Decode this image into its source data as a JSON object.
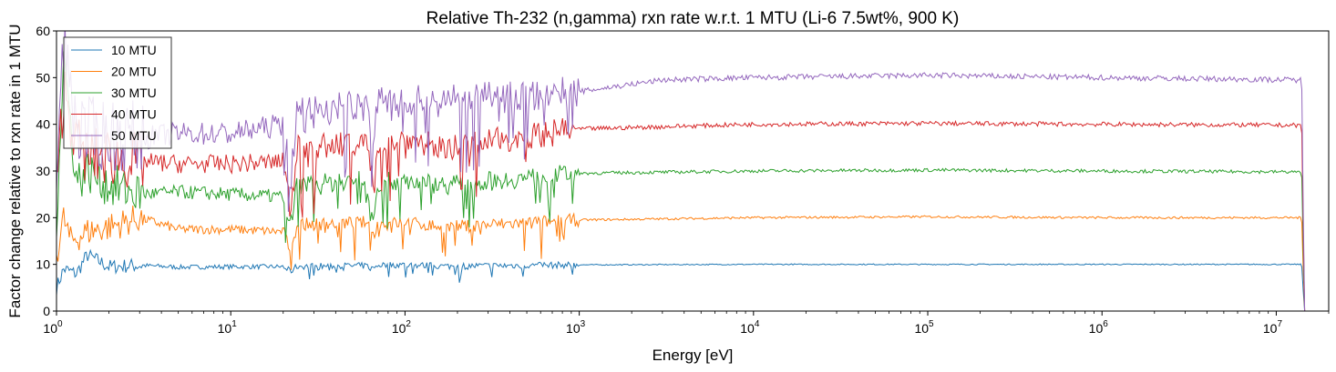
{
  "chart_data": {
    "type": "line",
    "title": "Relative Th-232 (n,gamma) rxn rate w.r.t. 1 MTU (Li-6 7.5wt%, 900 K)",
    "xlabel": "Energy [eV]",
    "ylabel": "Factor change relative to rxn rate in 1 MTU",
    "x_scale": "log",
    "xlim": [
      1,
      20000000
    ],
    "ylim": [
      0,
      60
    ],
    "yticks": [
      0,
      10,
      20,
      30,
      40,
      50,
      60
    ],
    "xticks": [
      {
        "value": 1,
        "base": "10",
        "exp": "0"
      },
      {
        "value": 10,
        "base": "10",
        "exp": "1"
      },
      {
        "value": 100,
        "base": "10",
        "exp": "2"
      },
      {
        "value": 1000,
        "base": "10",
        "exp": "3"
      },
      {
        "value": 10000,
        "base": "10",
        "exp": "4"
      },
      {
        "value": 100000,
        "base": "10",
        "exp": "5"
      },
      {
        "value": 1000000,
        "base": "10",
        "exp": "6"
      },
      {
        "value": 10000000,
        "base": "10",
        "exp": "7"
      }
    ],
    "legend_position": "top-left",
    "grid": false,
    "series": [
      {
        "name": "10 MTU",
        "color": "#1f77b4",
        "level": 10,
        "points": [
          [
            1,
            5
          ],
          [
            1.1,
            9
          ],
          [
            1.3,
            8
          ],
          [
            1.5,
            12
          ],
          [
            2,
            9.5
          ],
          [
            3,
            9.8
          ],
          [
            5,
            9.4
          ],
          [
            10,
            9.5
          ],
          [
            20,
            9.5
          ],
          [
            22,
            8.5
          ],
          [
            24,
            9.6
          ],
          [
            60,
            9.7
          ],
          [
            65,
            9.0
          ],
          [
            70,
            9.9
          ],
          [
            100,
            9.9
          ],
          [
            170,
            9.6
          ],
          [
            1000,
            9.9
          ],
          [
            10000,
            10.0
          ],
          [
            100000,
            10.0
          ],
          [
            1000000,
            10.0
          ],
          [
            14000000,
            10.0
          ],
          [
            14500000,
            0
          ],
          [
            20000000,
            0
          ]
        ]
      },
      {
        "name": "20 MTU",
        "color": "#ff7f0e",
        "level": 20,
        "points": [
          [
            1,
            12
          ],
          [
            1.1,
            20
          ],
          [
            1.2,
            15
          ],
          [
            1.5,
            17
          ],
          [
            2,
            18
          ],
          [
            3,
            20
          ],
          [
            5,
            17.5
          ],
          [
            10,
            17.5
          ],
          [
            20,
            17
          ],
          [
            22,
            13
          ],
          [
            24,
            18.5
          ],
          [
            60,
            19
          ],
          [
            65,
            16
          ],
          [
            70,
            18.5
          ],
          [
            100,
            19
          ],
          [
            170,
            18
          ],
          [
            1000,
            19.5
          ],
          [
            10000,
            20
          ],
          [
            100000,
            20.2
          ],
          [
            1000000,
            20
          ],
          [
            14000000,
            20
          ],
          [
            14500000,
            0
          ],
          [
            20000000,
            0
          ]
        ]
      },
      {
        "name": "30 MTU",
        "color": "#2ca02c",
        "level": 30,
        "points": [
          [
            1,
            20
          ],
          [
            1.1,
            55
          ],
          [
            1.3,
            28
          ],
          [
            1.5,
            30
          ],
          [
            2,
            27
          ],
          [
            3,
            25
          ],
          [
            5,
            25.5
          ],
          [
            10,
            25
          ],
          [
            20,
            24.5
          ],
          [
            22,
            18
          ],
          [
            24,
            27
          ],
          [
            60,
            28
          ],
          [
            65,
            20
          ],
          [
            70,
            27.5
          ],
          [
            100,
            28
          ],
          [
            170,
            27
          ],
          [
            1000,
            29.5
          ],
          [
            10000,
            30
          ],
          [
            100000,
            30.2
          ],
          [
            1000000,
            30
          ],
          [
            14000000,
            29.8
          ],
          [
            14500000,
            0
          ],
          [
            20000000,
            0
          ]
        ]
      },
      {
        "name": "40 MTU",
        "color": "#d62728",
        "level": 40,
        "points": [
          [
            1,
            25
          ],
          [
            1.1,
            48
          ],
          [
            1.3,
            36
          ],
          [
            1.5,
            33
          ],
          [
            2,
            33
          ],
          [
            3,
            32
          ],
          [
            5,
            31.5
          ],
          [
            10,
            31.5
          ],
          [
            20,
            32
          ],
          [
            22,
            22
          ],
          [
            24,
            35
          ],
          [
            60,
            36
          ],
          [
            65,
            28
          ],
          [
            70,
            36.5
          ],
          [
            100,
            37
          ],
          [
            170,
            35
          ],
          [
            1000,
            39
          ],
          [
            10000,
            40
          ],
          [
            100000,
            40.2
          ],
          [
            1000000,
            40
          ],
          [
            14000000,
            39.8
          ],
          [
            14500000,
            0
          ],
          [
            20000000,
            0
          ]
        ]
      },
      {
        "name": "50 MTU",
        "color": "#9467bd",
        "level": 50,
        "points": [
          [
            1,
            30
          ],
          [
            1.1,
            58
          ],
          [
            1.3,
            40
          ],
          [
            1.5,
            38
          ],
          [
            2,
            38
          ],
          [
            3,
            37
          ],
          [
            5,
            38
          ],
          [
            10,
            38
          ],
          [
            20,
            40
          ],
          [
            22,
            28
          ],
          [
            24,
            43
          ],
          [
            60,
            44
          ],
          [
            65,
            36
          ],
          [
            70,
            45
          ],
          [
            100,
            45
          ],
          [
            170,
            45
          ],
          [
            1000,
            47
          ],
          [
            3000,
            49.5
          ],
          [
            10000,
            50
          ],
          [
            100000,
            50.5
          ],
          [
            1000000,
            50
          ],
          [
            14000000,
            49.5
          ],
          [
            14500000,
            0
          ],
          [
            20000000,
            0
          ]
        ]
      }
    ]
  }
}
